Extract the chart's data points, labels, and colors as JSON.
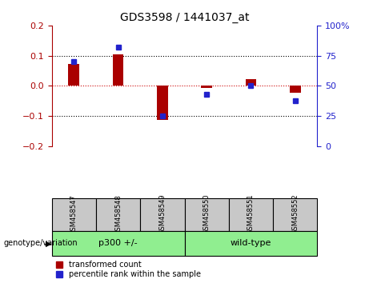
{
  "title": "GDS3598 / 1441037_at",
  "samples": [
    "GSM458547",
    "GSM458548",
    "GSM458549",
    "GSM458550",
    "GSM458551",
    "GSM458552"
  ],
  "red_values": [
    0.073,
    0.105,
    -0.113,
    -0.008,
    0.022,
    -0.022
  ],
  "blue_values_pct": [
    70,
    82,
    25,
    43,
    50,
    38
  ],
  "ylim": [
    -0.2,
    0.2
  ],
  "y2lim": [
    0,
    100
  ],
  "yticks": [
    -0.2,
    -0.1,
    0.0,
    0.1,
    0.2
  ],
  "y2ticks": [
    0,
    25,
    50,
    75,
    100
  ],
  "groups": [
    {
      "label": "p300 +/-",
      "indices": [
        0,
        1,
        2
      ],
      "color": "#90EE90"
    },
    {
      "label": "wild-type",
      "indices": [
        3,
        4,
        5
      ],
      "color": "#90EE90"
    }
  ],
  "group_label_prefix": "genotype/variation",
  "red_color": "#AA0000",
  "blue_color": "#2222CC",
  "red_bar_width": 0.25,
  "blue_marker_size": 5.0,
  "legend_red": "transformed count",
  "legend_blue": "percentile rank within the sample",
  "zero_line_color": "#CC0000",
  "grid_color": "#000000",
  "bg_color": "#FFFFFF",
  "plot_bg": "#FFFFFF",
  "tick_bg": "#C8C8C8"
}
